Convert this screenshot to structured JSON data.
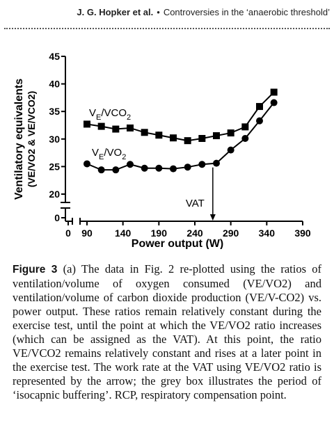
{
  "header": {
    "authors": "J. G. Hopker et al.",
    "bullet": "•",
    "title": "Controversies in the ‘anaerobic threshold’"
  },
  "chart_data": {
    "type": "line",
    "xlabel": "Power output (W)",
    "ylabel_line1": "Ventilatory equivalents",
    "ylabel_line2": "(VE/VO2 & VE/VCO2)",
    "xlim": [
      0,
      390
    ],
    "ylim": [
      0,
      45
    ],
    "xaxis_break": true,
    "yaxis_break": true,
    "x_ticks": [
      0,
      90,
      140,
      190,
      240,
      290,
      340,
      390
    ],
    "y_ticks": [
      0,
      20,
      25,
      30,
      35,
      40,
      45
    ],
    "grid": false,
    "series": [
      {
        "name": "VE/VCO2",
        "marker": "square",
        "x": [
          90,
          110,
          130,
          150,
          170,
          190,
          210,
          230,
          250,
          270,
          290,
          310,
          330,
          350
        ],
        "y": [
          32.7,
          32.3,
          31.8,
          32.0,
          31.2,
          30.7,
          30.2,
          29.7,
          30.1,
          30.6,
          31.1,
          32.2,
          35.9,
          38.5
        ]
      },
      {
        "name": "VE/VO2",
        "marker": "circle",
        "x": [
          90,
          110,
          130,
          150,
          170,
          190,
          210,
          230,
          250,
          270,
          290,
          310,
          330,
          350
        ],
        "y": [
          25.5,
          24.4,
          24.4,
          25.4,
          24.7,
          24.7,
          24.6,
          24.9,
          25.4,
          25.6,
          28.0,
          30.1,
          33.3,
          36.6
        ]
      }
    ],
    "annotations": [
      {
        "text": "VAT",
        "x": 265,
        "y_from": 25.6,
        "y_to": 0
      }
    ],
    "series_labels": {
      "vco2": {
        "prefix": "V",
        "sub1": "E",
        "mid": "/V",
        "suffix": "CO",
        "sub2": "2"
      },
      "vo2": {
        "prefix": "V",
        "sub1": "E",
        "mid": "/V",
        "suffix": "O",
        "sub2": "2"
      }
    },
    "line_color": "#000000",
    "arrow_label": "VAT"
  },
  "caption": {
    "figure_label": "Figure 3",
    "text": "(a) The data in Fig. 2 re-plotted using the ratios of ventilation/volume of oxygen consumed (VE/VO2) and ventilation/volume of carbon dioxide production (VE/V-CO2) vs. power output. These ratios remain relatively constant during the exercise test, until the point at which the VE/VO2 ratio increases (which can be assigned as the VAT). At this point, the ratio VE/VCO2 remains relatively constant and rises at a later point in the exercise test. The work rate at the VAT using VE/VO2 ratio is represented by the arrow; the grey box illustrates the period of ‘isocapnic buffering’. RCP, respiratory compensation point."
  }
}
